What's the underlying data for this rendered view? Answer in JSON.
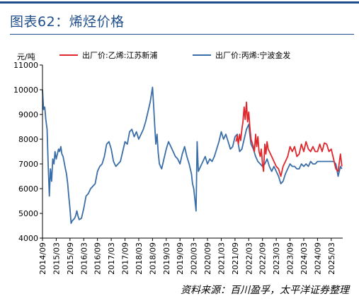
{
  "title": "图表62：烯烃价格",
  "source": "资料来源：百川盈孚，太平洋证券整理",
  "chart_data": {
    "type": "line",
    "ylabel": "元/吨",
    "ylim": [
      4000,
      11000
    ],
    "yticks": [
      4000,
      5000,
      6000,
      7000,
      8000,
      9000,
      10000,
      11000
    ],
    "xlim": [
      "2014-09",
      "2025-08"
    ],
    "xticks": [
      "2014/09",
      "2015/03",
      "2015/09",
      "2016/03",
      "2016/09",
      "2017/03",
      "2017/09",
      "2018/03",
      "2018/09",
      "2019/03",
      "2019/09",
      "2020/03",
      "2020/09",
      "2021/03",
      "2021/09",
      "2022/03",
      "2022/09",
      "2023/03",
      "2023/09",
      "2024/03",
      "2024/09",
      "2025/03"
    ],
    "legend_position": "top",
    "grid": false,
    "series": [
      {
        "name": "出厂价:乙烯:江苏新浦",
        "color": "#e0272c",
        "points": [
          [
            "2021-09-15",
            7900
          ],
          [
            "2021-10-01",
            8150
          ],
          [
            "2021-10-15",
            7800
          ],
          [
            "2021-11-01",
            8200
          ],
          [
            "2021-11-15",
            7950
          ],
          [
            "2021-12-01",
            8400
          ],
          [
            "2021-12-15",
            8700
          ],
          [
            "2022-01-01",
            9300
          ],
          [
            "2022-01-15",
            8800
          ],
          [
            "2022-02-01",
            9500
          ],
          [
            "2022-02-15",
            8700
          ],
          [
            "2022-03-01",
            9100
          ],
          [
            "2022-03-15",
            8500
          ],
          [
            "2022-04-01",
            8000
          ],
          [
            "2022-05-01",
            7700
          ],
          [
            "2022-05-15",
            7500
          ],
          [
            "2022-06-01",
            8200
          ],
          [
            "2022-06-15",
            7700
          ],
          [
            "2022-07-01",
            8100
          ],
          [
            "2022-07-15",
            7500
          ],
          [
            "2022-08-01",
            7300
          ],
          [
            "2022-08-15",
            7600
          ],
          [
            "2022-09-01",
            7000
          ],
          [
            "2022-09-15",
            6700
          ],
          [
            "2022-10-01",
            7800
          ],
          [
            "2022-10-15",
            7400
          ],
          [
            "2022-11-01",
            7900
          ],
          [
            "2022-11-15",
            7600
          ],
          [
            "2022-12-01",
            7500
          ],
          [
            "2023-01-01",
            7300
          ],
          [
            "2023-02-01",
            7100
          ],
          [
            "2023-03-01",
            6900
          ],
          [
            "2023-04-01",
            6800
          ],
          [
            "2023-05-01",
            6500
          ],
          [
            "2023-06-01",
            6900
          ],
          [
            "2023-07-01",
            7100
          ],
          [
            "2023-08-01",
            7300
          ],
          [
            "2023-09-01",
            7700
          ],
          [
            "2023-10-01",
            7500
          ],
          [
            "2023-11-01",
            7700
          ],
          [
            "2023-12-01",
            7300
          ],
          [
            "2024-01-01",
            7400
          ],
          [
            "2024-02-01",
            7800
          ],
          [
            "2024-03-01",
            7500
          ],
          [
            "2024-04-01",
            7900
          ],
          [
            "2024-05-01",
            7600
          ],
          [
            "2024-06-01",
            7500
          ],
          [
            "2024-07-01",
            7700
          ],
          [
            "2024-08-01",
            7500
          ],
          [
            "2024-09-01",
            7500
          ],
          [
            "2024-10-01",
            7800
          ],
          [
            "2024-11-01",
            7500
          ],
          [
            "2024-12-01",
            7850
          ],
          [
            "2025-01-01",
            7800
          ],
          [
            "2025-02-01",
            7500
          ],
          [
            "2025-03-01",
            7600
          ],
          [
            "2025-04-01",
            7200
          ],
          [
            "2025-05-01",
            6800
          ],
          [
            "2025-06-01",
            6700
          ],
          [
            "2025-07-01",
            7400
          ],
          [
            "2025-07-20",
            6900
          ]
        ]
      },
      {
        "name": "出厂价:丙烯:宁波金发",
        "color": "#3a6ea8",
        "points": [
          [
            "2014-09-01",
            10000
          ],
          [
            "2014-09-15",
            9200
          ],
          [
            "2014-10-01",
            9300
          ],
          [
            "2014-10-15",
            8800
          ],
          [
            "2014-11-01",
            8400
          ],
          [
            "2014-11-15",
            7000
          ],
          [
            "2014-12-01",
            5700
          ],
          [
            "2014-12-15",
            6800
          ],
          [
            "2015-01-01",
            6300
          ],
          [
            "2015-01-15",
            7200
          ],
          [
            "2015-02-01",
            7000
          ],
          [
            "2015-02-15",
            7500
          ],
          [
            "2015-03-01",
            7200
          ],
          [
            "2015-04-01",
            7600
          ],
          [
            "2015-04-15",
            7500
          ],
          [
            "2015-05-01",
            7700
          ],
          [
            "2015-05-15",
            7400
          ],
          [
            "2015-06-01",
            7300
          ],
          [
            "2015-07-01",
            6800
          ],
          [
            "2015-07-15",
            6600
          ],
          [
            "2015-08-01",
            6200
          ],
          [
            "2015-08-15",
            5700
          ],
          [
            "2015-09-01",
            5200
          ],
          [
            "2015-09-15",
            4600
          ],
          [
            "2015-10-01",
            4700
          ],
          [
            "2015-11-01",
            4800
          ],
          [
            "2015-11-15",
            4900
          ],
          [
            "2015-12-01",
            5100
          ],
          [
            "2015-12-15",
            4900
          ],
          [
            "2016-01-01",
            4750
          ],
          [
            "2016-02-01",
            4800
          ],
          [
            "2016-03-01",
            5200
          ],
          [
            "2016-04-01",
            5700
          ],
          [
            "2016-05-01",
            5800
          ],
          [
            "2016-06-01",
            6000
          ],
          [
            "2016-07-01",
            6100
          ],
          [
            "2016-08-01",
            6200
          ],
          [
            "2016-09-01",
            6700
          ],
          [
            "2016-10-01",
            6900
          ],
          [
            "2016-11-01",
            7000
          ],
          [
            "2016-12-01",
            7300
          ],
          [
            "2017-01-01",
            7800
          ],
          [
            "2017-02-01",
            7900
          ],
          [
            "2017-03-01",
            7600
          ],
          [
            "2017-04-01",
            7100
          ],
          [
            "2017-05-01",
            6900
          ],
          [
            "2017-06-01",
            7000
          ],
          [
            "2017-07-01",
            7100
          ],
          [
            "2017-08-01",
            7500
          ],
          [
            "2017-09-01",
            7900
          ],
          [
            "2017-10-01",
            7800
          ],
          [
            "2017-11-01",
            8300
          ],
          [
            "2017-12-01",
            8400
          ],
          [
            "2018-01-01",
            8100
          ],
          [
            "2018-02-01",
            8300
          ],
          [
            "2018-03-01",
            8000
          ],
          [
            "2018-04-01",
            8200
          ],
          [
            "2018-05-01",
            8400
          ],
          [
            "2018-06-01",
            8700
          ],
          [
            "2018-07-01",
            9100
          ],
          [
            "2018-08-01",
            9500
          ],
          [
            "2018-09-01",
            10100
          ],
          [
            "2018-09-15",
            9400
          ],
          [
            "2018-10-01",
            8500
          ],
          [
            "2018-10-15",
            7800
          ],
          [
            "2018-11-01",
            8200
          ],
          [
            "2018-11-15",
            7500
          ],
          [
            "2018-12-01",
            7000
          ],
          [
            "2019-01-01",
            6800
          ],
          [
            "2019-02-01",
            7200
          ],
          [
            "2019-03-01",
            7600
          ],
          [
            "2019-04-01",
            7900
          ],
          [
            "2019-05-01",
            7700
          ],
          [
            "2019-06-01",
            7500
          ],
          [
            "2019-07-01",
            7300
          ],
          [
            "2019-08-01",
            7200
          ],
          [
            "2019-09-01",
            7000
          ],
          [
            "2019-10-01",
            7400
          ],
          [
            "2019-11-01",
            7700
          ],
          [
            "2019-12-01",
            7300
          ],
          [
            "2020-01-01",
            7000
          ],
          [
            "2020-02-01",
            6600
          ],
          [
            "2020-02-15",
            6200
          ],
          [
            "2020-03-01",
            6000
          ],
          [
            "2020-03-15",
            5600
          ],
          [
            "2020-04-01",
            5100
          ],
          [
            "2020-04-15",
            7900
          ],
          [
            "2020-05-01",
            6700
          ],
          [
            "2020-06-01",
            6900
          ],
          [
            "2020-07-01",
            7100
          ],
          [
            "2020-08-01",
            7300
          ],
          [
            "2020-09-01",
            7000
          ],
          [
            "2020-10-01",
            7200
          ],
          [
            "2020-11-01",
            7100
          ],
          [
            "2020-12-01",
            7300
          ],
          [
            "2021-01-01",
            7600
          ],
          [
            "2021-02-01",
            7900
          ],
          [
            "2021-03-01",
            8300
          ],
          [
            "2021-04-01",
            8000
          ],
          [
            "2021-05-01",
            8200
          ],
          [
            "2021-06-01",
            7900
          ],
          [
            "2021-07-01",
            7600
          ],
          [
            "2021-08-01",
            7700
          ],
          [
            "2021-09-01",
            8100
          ],
          [
            "2021-10-01",
            8200
          ],
          [
            "2021-10-15",
            7800
          ],
          [
            "2021-11-01",
            7500
          ],
          [
            "2021-12-01",
            7600
          ],
          [
            "2022-01-01",
            8000
          ],
          [
            "2022-02-01",
            8400
          ],
          [
            "2022-03-01",
            8600
          ],
          [
            "2022-03-15",
            8200
          ],
          [
            "2022-04-01",
            7800
          ],
          [
            "2022-05-01",
            7600
          ],
          [
            "2022-06-01",
            7300
          ],
          [
            "2022-07-01",
            7100
          ],
          [
            "2022-08-01",
            7000
          ],
          [
            "2022-09-01",
            6900
          ],
          [
            "2022-10-01",
            7000
          ],
          [
            "2022-11-01",
            7200
          ],
          [
            "2022-12-01",
            6900
          ],
          [
            "2023-01-01",
            6700
          ],
          [
            "2023-02-01",
            6900
          ],
          [
            "2023-03-01",
            6700
          ],
          [
            "2023-04-01",
            6500
          ],
          [
            "2023-05-01",
            6200
          ],
          [
            "2023-06-01",
            6300
          ],
          [
            "2023-07-01",
            6600
          ],
          [
            "2023-08-01",
            6800
          ],
          [
            "2023-09-01",
            7000
          ],
          [
            "2023-10-01",
            6900
          ],
          [
            "2023-11-01",
            6900
          ],
          [
            "2023-12-01",
            6800
          ],
          [
            "2024-01-01",
            6800
          ],
          [
            "2024-02-01",
            7000
          ],
          [
            "2024-03-01",
            6900
          ],
          [
            "2024-04-01",
            7000
          ],
          [
            "2024-05-01",
            6900
          ],
          [
            "2024-06-01",
            7100
          ],
          [
            "2024-07-01",
            7000
          ],
          [
            "2024-08-01",
            7000
          ],
          [
            "2024-09-01",
            7100
          ],
          [
            "2024-10-01",
            7100
          ],
          [
            "2024-11-01",
            7100
          ],
          [
            "2024-12-01",
            7100
          ],
          [
            "2025-01-01",
            7100
          ],
          [
            "2025-02-01",
            7100
          ],
          [
            "2025-03-01",
            7100
          ],
          [
            "2025-04-01",
            7100
          ],
          [
            "2025-05-01",
            7000
          ],
          [
            "2025-06-01",
            6500
          ],
          [
            "2025-07-01",
            6900
          ],
          [
            "2025-07-20",
            6800
          ]
        ]
      }
    ]
  }
}
